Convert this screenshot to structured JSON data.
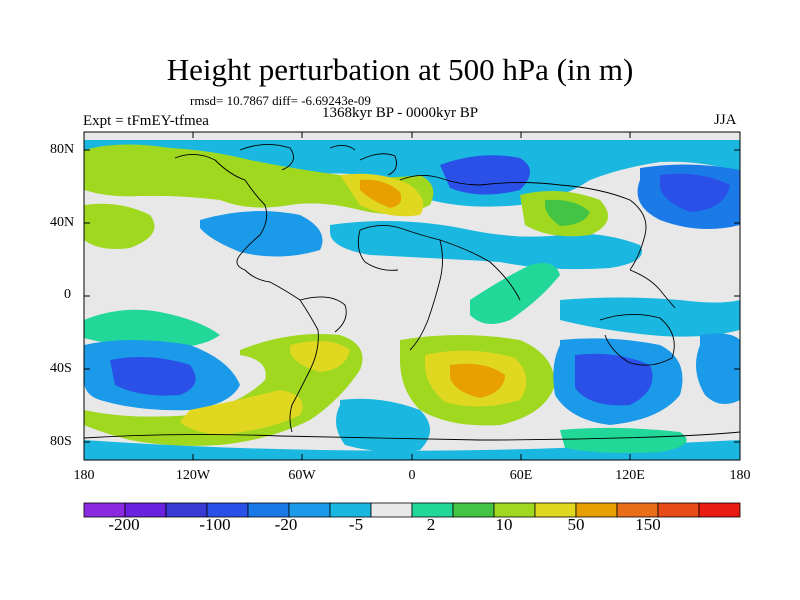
{
  "title": "Height perturbation at 500 hPa (in m)",
  "stats": "rmsd= 10.7867  diff= -6.69243e-09",
  "period": "1368kyr BP - 0000kyr BP",
  "experiment": "Expt = tFmEY-tfmea",
  "season": "JJA",
  "lat_labels": [
    "80N",
    "40N",
    "0",
    "40S",
    "80S"
  ],
  "lon_labels": [
    "180",
    "120W",
    "60W",
    "0",
    "60E",
    "120E",
    "180"
  ],
  "colorbar": {
    "labels": [
      "-200",
      "-100",
      "-20",
      "-5",
      "2",
      "10",
      "50",
      "150"
    ],
    "colors": [
      "#8a2be2",
      "#6a22e0",
      "#3a3ad4",
      "#2a50e8",
      "#1a7ae8",
      "#1a9ae8",
      "#1ab8e0",
      "#e8e8e8",
      "#22d898",
      "#44c444",
      "#a0d820",
      "#e0d820",
      "#e8a000",
      "#e86e1a",
      "#e84a18",
      "#e81c10"
    ]
  },
  "colors": {
    "land_line": "#000000",
    "neutral": "#e8e8e8",
    "blue_dark": "#2a50e8",
    "blue_mid": "#1a8ae8",
    "cyan": "#1ab8e0",
    "teal": "#22d898",
    "green": "#44c444",
    "yellow_green": "#a0d820",
    "yellow": "#e0d820",
    "orange": "#e8a000"
  }
}
